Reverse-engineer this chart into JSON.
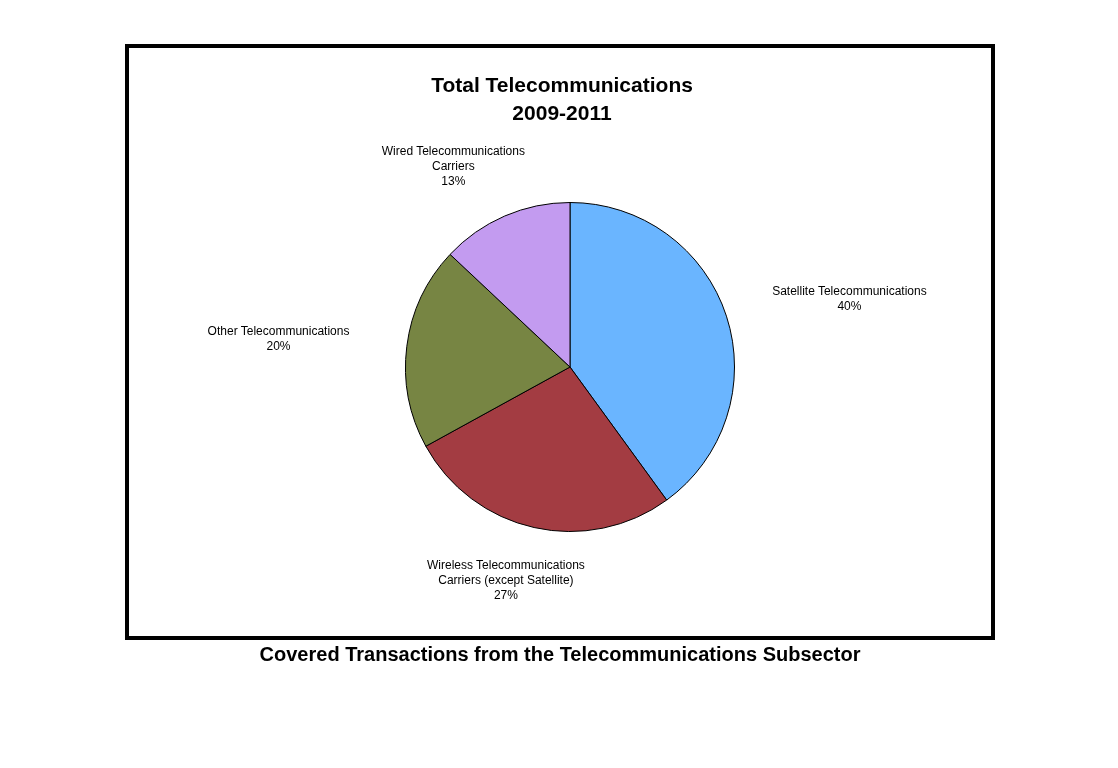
{
  "chart_data": {
    "type": "pie",
    "title": "Total Telecommunications\n2009-2011",
    "categories": [
      "Satellite Telecommunications",
      "Wireless Telecommunications Carriers (except Satellite)",
      "Other Telecommunications",
      "Wired Telecommunications Carriers"
    ],
    "values": [
      40,
      27,
      20,
      13
    ],
    "value_labels": [
      "40%",
      "27%",
      "20%",
      "13%"
    ],
    "colors": [
      "#6ab5ff",
      "#a33c42",
      "#778543",
      "#c39bf0"
    ],
    "annotations": [
      "Covered Transactions from the Telecommunications Subsector"
    ],
    "legend": false
  }
}
